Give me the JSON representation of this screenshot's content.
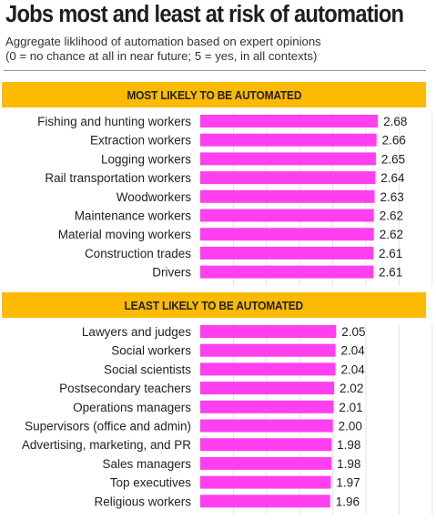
{
  "header": {
    "title": "Jobs most and least at risk of automation",
    "subtitle_line1": "Aggregate liklihood of automation based on expert opinions",
    "subtitle_line2": "(0 =  no chance at all in near future; 5 = yes, in all contexts)"
  },
  "colors": {
    "bar": "#ff3ff0",
    "banner": "#fcba03",
    "grid": "#e4e4e4"
  },
  "chart_data": [
    {
      "type": "bar",
      "orientation": "horizontal",
      "title": "MOST LIKELY TO BE AUTOMATED",
      "categories": [
        "Fishing and hunting workers",
        "Extraction workers",
        "Logging workers",
        "Rail transportation workers",
        "Woodworkers",
        "Maintenance workers",
        "Material moving workers",
        "Construction trades",
        "Drivers"
      ],
      "values": [
        2.68,
        2.66,
        2.65,
        2.64,
        2.63,
        2.62,
        2.62,
        2.61,
        2.61
      ],
      "value_labels": [
        "2.68",
        "2.66",
        "2.65",
        "2.64",
        "2.63",
        "2.62",
        "2.62",
        "2.61",
        "2.61"
      ],
      "xlim": [
        0,
        5
      ],
      "grid": true
    },
    {
      "type": "bar",
      "orientation": "horizontal",
      "title": "LEAST LIKELY TO BE AUTOMATED",
      "categories": [
        "Lawyers and judges",
        "Social workers",
        "Social scientists",
        "Postsecondary teachers",
        "Operations managers",
        "Supervisors (office and admin)",
        "Advertising, marketing, and PR",
        "Sales managers",
        "Top executives",
        "Religious workers"
      ],
      "values": [
        2.05,
        2.04,
        2.04,
        2.02,
        2.01,
        2.0,
        1.98,
        1.98,
        1.97,
        1.96
      ],
      "value_labels": [
        "2.05",
        "2.04",
        "2.04",
        "2.02",
        "2.01",
        "2.00",
        "1.98",
        "1.98",
        "1.97",
        "1.96"
      ],
      "xlim": [
        0,
        5
      ],
      "grid": true
    }
  ]
}
